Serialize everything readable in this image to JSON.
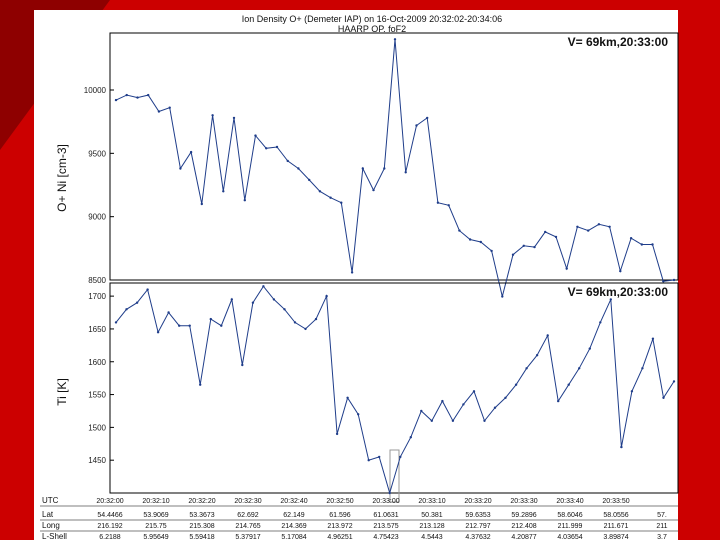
{
  "slide": {
    "background_color": "#cc0000",
    "corner_color": "#8e0000"
  },
  "chart_data": [
    {
      "type": "line",
      "title": "Ion Density O+ (Demeter IAP) on 16-Oct-2009 20:32:02-20:34:06",
      "subtitle": "HAARP OP. foF2",
      "ylabel": "O+ Ni [cm-3]",
      "legend_text": "V= 69km,20:33:00",
      "ylim": [
        8500,
        10450
      ],
      "yticks": [
        8500,
        9000,
        9500,
        10000
      ],
      "ytick_labels": [
        "8500",
        "9000",
        "9500",
        "10000"
      ],
      "line_color": "#1f3d8a",
      "series": [
        {
          "values": [
            9920,
            9960,
            9940,
            9960,
            9830,
            9860,
            9380,
            9510,
            9100,
            9800,
            9200,
            9780,
            9130,
            9640,
            9540,
            9550,
            9440,
            9380,
            9290,
            9200,
            9150,
            9110,
            8560,
            9380,
            9210,
            9380,
            10400,
            9350,
            9720,
            9780,
            9110,
            9090,
            8890,
            8820,
            8800,
            8730,
            8370,
            8700,
            8770,
            8760,
            8880,
            8840,
            8590,
            8920,
            8890,
            8940,
            8920,
            8570,
            8830,
            8780,
            8780,
            8490,
            8500
          ]
        }
      ]
    },
    {
      "type": "line",
      "ylabel": "Ti [K]",
      "legend_text": "V= 69km,20:33:00",
      "ylim": [
        1400,
        1720
      ],
      "yticks": [
        1450,
        1500,
        1550,
        1600,
        1650,
        1700
      ],
      "ytick_labels": [
        "1450",
        "1500",
        "1550",
        "1600",
        "1650",
        "1700"
      ],
      "line_color": "#1f3d8a",
      "series": [
        {
          "values": [
            1660,
            1680,
            1690,
            1710,
            1645,
            1675,
            1655,
            1655,
            1565,
            1665,
            1655,
            1695,
            1595,
            1690,
            1715,
            1695,
            1680,
            1660,
            1650,
            1665,
            1700,
            1490,
            1545,
            1520,
            1450,
            1455,
            1400,
            1455,
            1485,
            1525,
            1510,
            1540,
            1510,
            1535,
            1555,
            1510,
            1530,
            1545,
            1565,
            1590,
            1610,
            1640,
            1540,
            1565,
            1590,
            1620,
            1660,
            1695,
            1470,
            1555,
            1590,
            1635,
            1545,
            1570
          ]
        }
      ]
    }
  ],
  "table": {
    "row_labels": [
      "UTC",
      "Lat",
      "Long",
      "L-Shell"
    ],
    "columns": [
      {
        "UTC": "20:32:00",
        "Lat": "54.4466",
        "Long": "216.192",
        "L-Shell": "6.2188"
      },
      {
        "UTC": "20:32:10",
        "Lat": "53.9069",
        "Long": "215.75",
        "L-Shell": "5.95649"
      },
      {
        "UTC": "20:32:20",
        "Lat": "53.3673",
        "Long": "215.308",
        "L-Shell": "5.59418"
      },
      {
        "UTC": "20:32:30",
        "Lat": "62.692",
        "Long": "214.765",
        "L-Shell": "5.37917"
      },
      {
        "UTC": "20:32:40",
        "Lat": "62.149",
        "Long": "214.369",
        "L-Shell": "5.17084"
      },
      {
        "UTC": "20:32:50",
        "Lat": "61.596",
        "Long": "213.972",
        "L-Shell": "4.96251"
      },
      {
        "UTC": "20:33:00",
        "Lat": "61.0631",
        "Long": "213.575",
        "L-Shell": "4.75423"
      },
      {
        "UTC": "20:33:10",
        "Lat": "50.381",
        "Long": "213.128",
        "L-Shell": "4.5443"
      },
      {
        "UTC": "20:33:20",
        "Lat": "59.6353",
        "Long": "212.797",
        "L-Shell": "4.37632"
      },
      {
        "UTC": "20:33:30",
        "Lat": "59.2896",
        "Long": "212.408",
        "L-Shell": "4.20877"
      },
      {
        "UTC": "20:33:40",
        "Lat": "58.6046",
        "Long": "211.999",
        "L-Shell": "4.03654"
      },
      {
        "UTC": "20:33:50",
        "Lat": "58.0556",
        "Long": "211.671",
        "L-Shell": "3.89874"
      },
      {
        "UTC": "",
        "Lat": "57.",
        "Long": "211",
        "L-Shell": "3.7"
      }
    ]
  }
}
